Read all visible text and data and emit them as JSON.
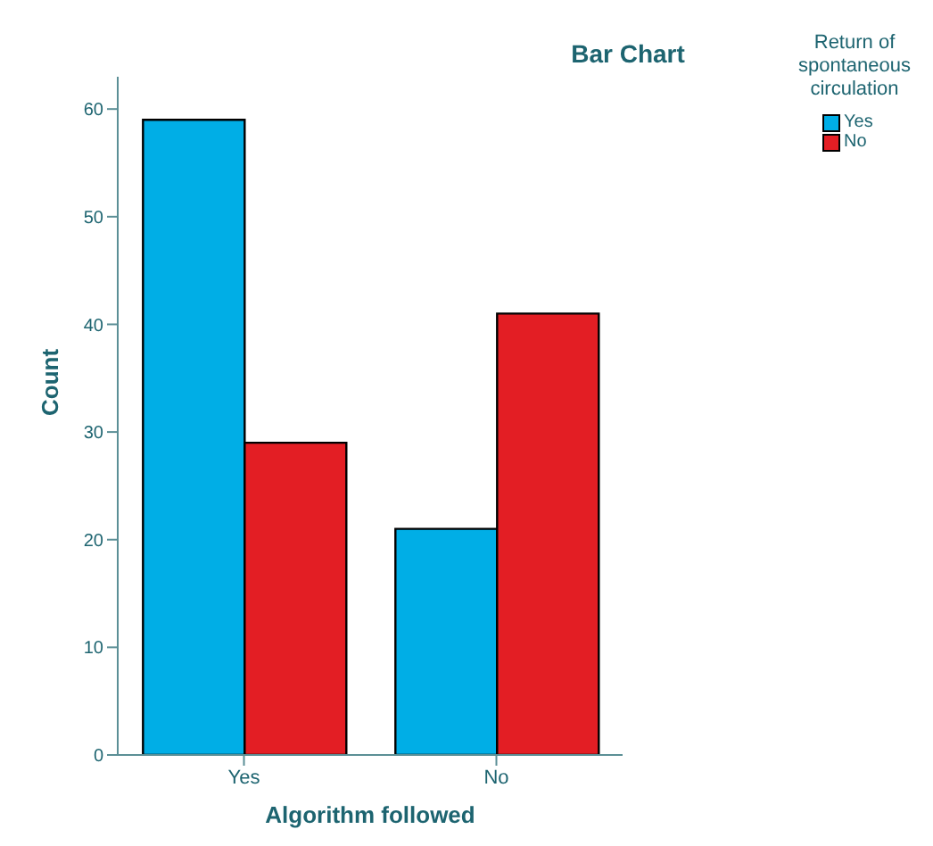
{
  "chart_data": {
    "type": "bar",
    "title": "Bar Chart",
    "xlabel": "Algorithm followed",
    "ylabel": "Count",
    "legend_title": "Return of spontaneous circulation",
    "categories": [
      "Yes",
      "No"
    ],
    "series": [
      {
        "name": "Yes",
        "color": "#00aee6",
        "values": [
          59,
          21
        ]
      },
      {
        "name": "No",
        "color": "#e31e24",
        "values": [
          29,
          41
        ]
      }
    ],
    "ylim": [
      0,
      63
    ],
    "yticks": [
      0,
      10,
      20,
      30,
      40,
      50,
      60
    ],
    "grid": false,
    "legend": "top right"
  }
}
